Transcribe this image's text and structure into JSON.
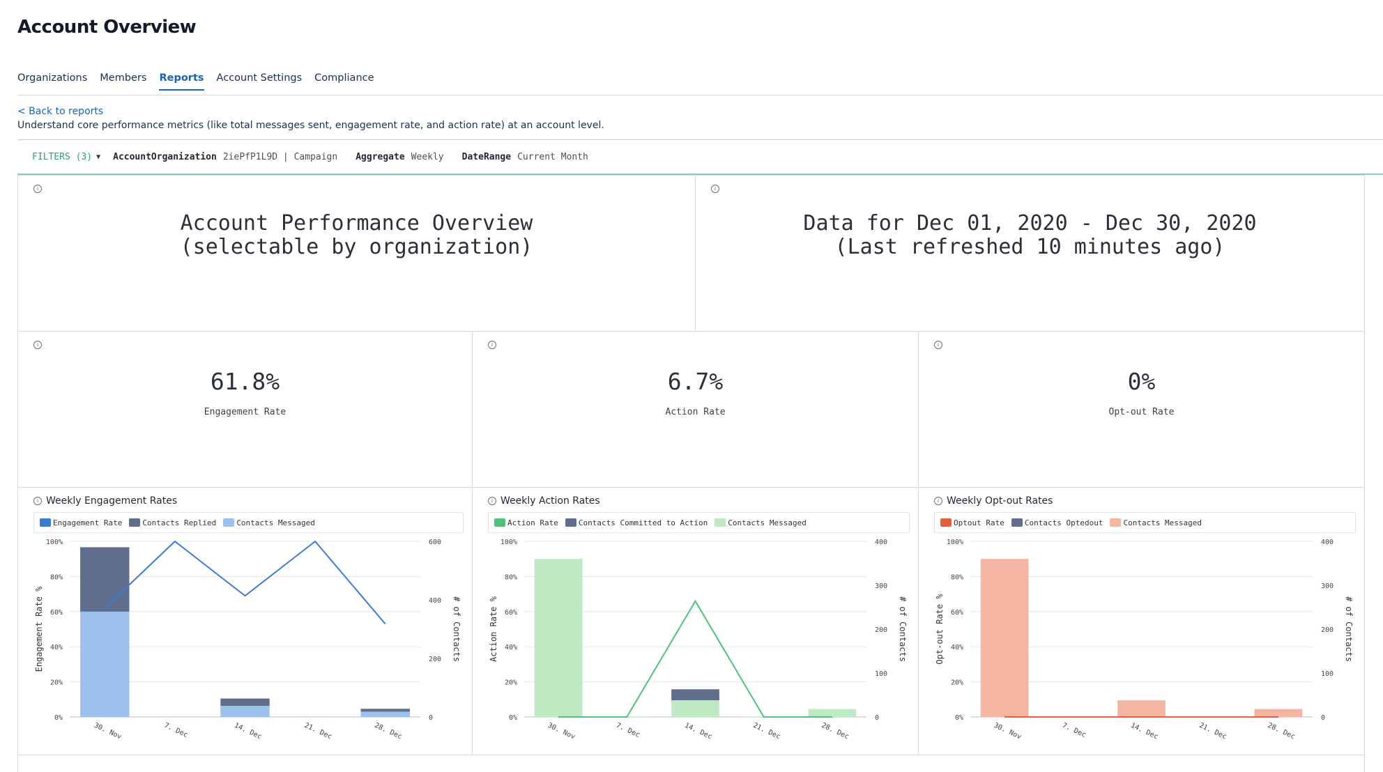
{
  "header": {
    "title": "Account Overview"
  },
  "tabs": [
    {
      "label": "Organizations",
      "active": false
    },
    {
      "label": "Members",
      "active": false
    },
    {
      "label": "Reports",
      "active": true
    },
    {
      "label": "Account Settings",
      "active": false
    },
    {
      "label": "Compliance",
      "active": false
    }
  ],
  "report": {
    "back_label": "< Back to reports",
    "description": "Understand core performance metrics (like total messages sent, engagement rate, and action rate) at an account level."
  },
  "filters": {
    "label": "FILTERS (3)",
    "items": [
      {
        "key": "AccountOrganization",
        "value": "2iePfP1L9D | Campaign"
      },
      {
        "key": "Aggregate",
        "value": "Weekly"
      },
      {
        "key": "DateRange",
        "value": "Current Month"
      }
    ]
  },
  "panels": {
    "overview": {
      "line1": "Account Performance Overview",
      "line2": "(selectable by organization)"
    },
    "date": {
      "line1": "Data for Dec 01, 2020 - Dec 30, 2020",
      "line2": "(Last refreshed 10 minutes ago)"
    },
    "kpis": [
      {
        "value": "61.8%",
        "label": "Engagement Rate"
      },
      {
        "value": "6.7%",
        "label": "Action Rate"
      },
      {
        "value": "0%",
        "label": "Opt-out Rate"
      }
    ]
  },
  "info_icon": "info-icon",
  "chart_data": [
    {
      "type": "bar",
      "title": "Weekly Engagement Rates",
      "categories": [
        "30. Nov",
        "7. Dec",
        "14. Dec",
        "21. Dec",
        "28. Dec"
      ],
      "ylabel": "Engagement Rate %",
      "y2label": "# of Contacts",
      "ylim": [
        0,
        100
      ],
      "y2lim": [
        0,
        600
      ],
      "yticks": [
        "0%",
        "20%",
        "40%",
        "60%",
        "80%",
        "100%"
      ],
      "y2ticks": [
        "0",
        "200",
        "400",
        "600"
      ],
      "series": [
        {
          "name": "Engagement Rate",
          "kind": "line",
          "axis": "left",
          "color": "#3a7bd5",
          "values": [
            62,
            100,
            69,
            100,
            53
          ]
        },
        {
          "name": "Contacts Replied",
          "kind": "bar",
          "axis": "right",
          "color": "#5e6e8c",
          "values": [
            220,
            0,
            25,
            0,
            10
          ]
        },
        {
          "name": "Contacts Messaged",
          "kind": "bar",
          "axis": "right",
          "color": "#9dc1ee",
          "values": [
            360,
            1,
            38,
            1,
            18
          ]
        }
      ]
    },
    {
      "type": "bar",
      "title": "Weekly Action Rates",
      "categories": [
        "30. Nov",
        "7. Dec",
        "14. Dec",
        "21. Dec",
        "28. Dec"
      ],
      "ylabel": "Action Rate %",
      "y2label": "# of Contacts",
      "ylim": [
        0,
        100
      ],
      "y2lim": [
        0,
        400
      ],
      "yticks": [
        "0%",
        "20%",
        "40%",
        "60%",
        "80%",
        "100%"
      ],
      "y2ticks": [
        "0",
        "100",
        "200",
        "300",
        "400"
      ],
      "series": [
        {
          "name": "Action Rate",
          "kind": "line",
          "axis": "left",
          "color": "#4cc27a",
          "values": [
            0,
            0,
            66,
            0,
            0
          ]
        },
        {
          "name": "Contacts Committed to Action",
          "kind": "bar",
          "axis": "right",
          "color": "#5e6e8c",
          "values": [
            0,
            0,
            25,
            0,
            0
          ]
        },
        {
          "name": "Contacts Messaged",
          "kind": "bar",
          "axis": "right",
          "color": "#bde9c3",
          "values": [
            360,
            1,
            38,
            1,
            18
          ]
        }
      ]
    },
    {
      "type": "bar",
      "title": "Weekly Opt-out Rates",
      "categories": [
        "30. Nov",
        "7. Dec",
        "14. Dec",
        "21. Dec",
        "28. Dec"
      ],
      "ylabel": "Opt-out Rate %",
      "y2label": "# of Contacts",
      "ylim": [
        0,
        100
      ],
      "y2lim": [
        0,
        400
      ],
      "yticks": [
        "0%",
        "20%",
        "40%",
        "60%",
        "80%",
        "100%"
      ],
      "y2ticks": [
        "0",
        "100",
        "200",
        "300",
        "400"
      ],
      "series": [
        {
          "name": "Optout Rate",
          "kind": "line",
          "axis": "left",
          "color": "#e0603f",
          "values": [
            0,
            0,
            0,
            0,
            0
          ]
        },
        {
          "name": "Contacts Optedout",
          "kind": "bar",
          "axis": "right",
          "color": "#5e6e8c",
          "values": [
            0,
            0,
            0,
            0,
            0
          ]
        },
        {
          "name": "Contacts Messaged",
          "kind": "bar",
          "axis": "right",
          "color": "#f4b6a2",
          "values": [
            360,
            1,
            38,
            1,
            18
          ]
        }
      ]
    }
  ]
}
